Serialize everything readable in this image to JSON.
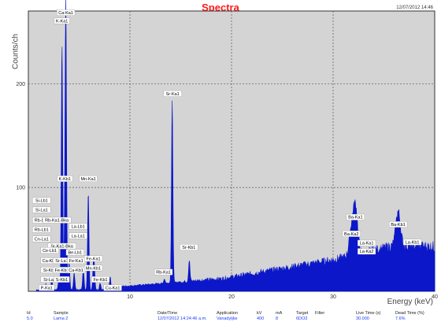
{
  "chart_data": {
    "type": "line",
    "title": "Spectra",
    "datetime": "12/07/2012 14:46",
    "xlabel": "Energy (keV)",
    "ylabel": "Counts/ch",
    "xlim": [
      0,
      40
    ],
    "ylim": [
      0,
      270
    ],
    "x_ticks": [
      10,
      20,
      30,
      40
    ],
    "y_ticks": [
      100,
      200
    ],
    "grid": true,
    "colors": {
      "plot_bg": "#d4d4d4",
      "spectrum": "#0b17c8",
      "title": "#ff1a1a",
      "label_bg": "#ffffff"
    },
    "peaks": [
      {
        "x": 1.74,
        "y": 7
      },
      {
        "x": 2.3,
        "y": 12
      },
      {
        "x": 3.0,
        "y": 12
      },
      {
        "x": 3.31,
        "y": 238
      },
      {
        "x": 3.69,
        "y": 265
      },
      {
        "x": 3.59,
        "y": 48
      },
      {
        "x": 4.01,
        "y": 28
      },
      {
        "x": 4.51,
        "y": 18
      },
      {
        "x": 5.41,
        "y": 22
      },
      {
        "x": 5.9,
        "y": 95
      },
      {
        "x": 6.4,
        "y": 23
      },
      {
        "x": 6.49,
        "y": 20
      },
      {
        "x": 7.06,
        "y": 8
      },
      {
        "x": 8.05,
        "y": 14
      },
      {
        "x": 13.39,
        "y": 12
      },
      {
        "x": 14.16,
        "y": 183
      },
      {
        "x": 15.84,
        "y": 30
      },
      {
        "x": 31.8,
        "y": 58
      },
      {
        "x": 32.2,
        "y": 80
      },
      {
        "x": 33.3,
        "y": 35
      },
      {
        "x": 36.4,
        "y": 77
      },
      {
        "x": 37.8,
        "y": 42
      }
    ],
    "annotations": [
      {
        "text": "Ca-Ka1",
        "x": 3.69,
        "y": 266
      },
      {
        "text": "K-Ka1",
        "x": 3.31,
        "y": 258
      },
      {
        "text": "K-Kb1",
        "x": 3.59,
        "y": 106
      },
      {
        "text": "Si-Lb1",
        "x": 1.3,
        "y": 85
      },
      {
        "text": "Si-La1",
        "x": 1.3,
        "y": 76
      },
      {
        "text": "Rb-Lb1",
        "x": 1.3,
        "y": 66
      },
      {
        "text": "Rb-Lb1",
        "x": 1.3,
        "y": 57
      },
      {
        "text": "Cn-La1",
        "x": 1.3,
        "y": 48
      },
      {
        "text": "Rb-Ka1-Bka",
        "x": 2.8,
        "y": 66
      },
      {
        "text": "La-Lb1",
        "x": 4.9,
        "y": 60
      },
      {
        "text": "La-La1",
        "x": 4.9,
        "y": 51
      },
      {
        "text": "Sr-Ka1-Bka",
        "x": 3.3,
        "y": 41
      },
      {
        "text": "Ce-Lb1",
        "x": 2.1,
        "y": 37
      },
      {
        "text": "Ca-Kb1",
        "x": 2.1,
        "y": 27
      },
      {
        "text": "Si-Kb1",
        "x": 2.1,
        "y": 18
      },
      {
        "text": "Si-La1",
        "x": 2.1,
        "y": 9
      },
      {
        "text": "P-Ka1",
        "x": 1.8,
        "y": 1
      },
      {
        "text": "Be-Lb1",
        "x": 4.6,
        "y": 35
      },
      {
        "text": "Sr-La1",
        "x": 3.3,
        "y": 27
      },
      {
        "text": "Fe-Kb1",
        "x": 3.3,
        "y": 18
      },
      {
        "text": "S-Kb1",
        "x": 3.3,
        "y": 9
      },
      {
        "text": "Fe-Ka1",
        "x": 4.7,
        "y": 27
      },
      {
        "text": "Ca-Kb1",
        "x": 4.7,
        "y": 18
      },
      {
        "text": "Mn-Ka1",
        "x": 5.9,
        "y": 106
      },
      {
        "text": "Fe-Ka1",
        "x": 6.4,
        "y": 29
      },
      {
        "text": "Mn-Kb1",
        "x": 6.4,
        "y": 20
      },
      {
        "text": "Fe-Kb1",
        "x": 7.1,
        "y": 9
      },
      {
        "text": "Cu-Ka1",
        "x": 8.3,
        "y": 1
      },
      {
        "text": "Sr-Ka1",
        "x": 14.2,
        "y": 188
      },
      {
        "text": "Rb-Ka1",
        "x": 13.3,
        "y": 16
      },
      {
        "text": "Sr-Kb1",
        "x": 15.8,
        "y": 40
      },
      {
        "text": "Ba-Ka1",
        "x": 32.2,
        "y": 69
      },
      {
        "text": "Ba-Ka2",
        "x": 31.8,
        "y": 53
      },
      {
        "text": "La-Ka1",
        "x": 33.3,
        "y": 44
      },
      {
        "text": "La-Ka2",
        "x": 33.3,
        "y": 36
      },
      {
        "text": "Ba-Kb1",
        "x": 36.4,
        "y": 62
      },
      {
        "text": "La-Kb1",
        "x": 37.8,
        "y": 45
      }
    ]
  },
  "footer": {
    "headers": [
      "Id",
      "Sample",
      "Date/Time",
      "Application",
      "kV",
      "mA",
      "Target",
      "Filter",
      "Live Time (s)",
      "Dead Time (%)"
    ],
    "values": [
      "5.0",
      "Lama 2",
      "12/07/2012 14:24:46 a.m.",
      "Vanadyljke",
      "400",
      "8",
      "6DO3",
      "",
      "30.000",
      "7.6%"
    ]
  }
}
